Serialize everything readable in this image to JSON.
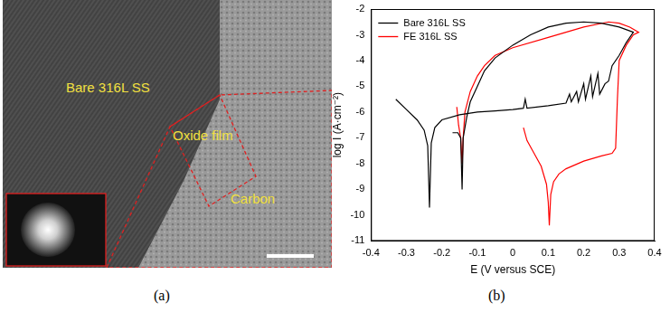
{
  "figure": {
    "panel_a": {
      "caption": "(a)",
      "labels": [
        "Bare 316L SS",
        "Oxide film",
        "Carbon"
      ]
    },
    "panel_b": {
      "caption": "(b)"
    }
  },
  "chart_data": {
    "type": "line",
    "xlabel": "E (V versus SCE)",
    "ylabel": "log I (A·cm⁻²)",
    "xlim": [
      -0.4,
      0.4
    ],
    "xticks": [
      -0.4,
      -0.3,
      -0.2,
      -0.1,
      0,
      0.1,
      0.2,
      0.3,
      0.4
    ],
    "ylim": [
      -11,
      -2
    ],
    "yticks": [
      -11,
      -10,
      -9,
      -8,
      -7,
      -6,
      -5,
      -4,
      -3,
      -2
    ],
    "grid": false,
    "legend": "upper left",
    "series": [
      {
        "name": "Bare 316L SS",
        "color": "#000000",
        "x": [
          -0.33,
          -0.3,
          -0.27,
          -0.25,
          -0.24,
          -0.235,
          -0.23,
          -0.22,
          -0.2,
          -0.15,
          -0.1,
          -0.05,
          0.0,
          0.03,
          0.035,
          0.04,
          0.1,
          0.15,
          0.16,
          0.165,
          0.18,
          0.185,
          0.2,
          0.205,
          0.22,
          0.225,
          0.24,
          0.245,
          0.26,
          0.27,
          0.28,
          0.3,
          0.32,
          0.34,
          0.3,
          0.25,
          0.2,
          0.15,
          0.1,
          0.05,
          0.0,
          -0.05,
          -0.08,
          -0.1,
          -0.12,
          -0.13,
          -0.14,
          -0.143,
          -0.147,
          -0.155,
          -0.17
        ],
        "values": [
          -5.5,
          -5.9,
          -6.3,
          -6.7,
          -7.3,
          -9.7,
          -7.2,
          -6.6,
          -6.3,
          -6.1,
          -6.0,
          -5.95,
          -5.9,
          -5.85,
          -5.5,
          -5.85,
          -5.75,
          -5.65,
          -5.3,
          -5.6,
          -5.2,
          -5.6,
          -4.9,
          -5.5,
          -4.6,
          -5.4,
          -4.5,
          -5.3,
          -4.9,
          -4.8,
          -4.2,
          -3.8,
          -3.3,
          -2.9,
          -2.7,
          -2.55,
          -2.5,
          -2.55,
          -2.7,
          -3.0,
          -3.4,
          -3.9,
          -4.4,
          -5.0,
          -5.6,
          -6.2,
          -7.0,
          -9.0,
          -7.0,
          -6.8,
          -6.8
        ]
      },
      {
        "name": "FE 316L SS",
        "color": "#ff0000",
        "x": [
          0.03,
          0.04,
          0.06,
          0.08,
          0.095,
          0.1,
          0.103,
          0.107,
          0.115,
          0.13,
          0.15,
          0.2,
          0.25,
          0.28,
          0.29,
          0.295,
          0.3,
          0.32,
          0.34,
          0.355,
          0.33,
          0.3,
          0.27,
          0.2,
          0.1,
          0.0,
          -0.05,
          -0.08,
          -0.1,
          -0.12,
          -0.135,
          -0.14,
          -0.143,
          -0.147,
          -0.153,
          -0.158
        ],
        "values": [
          -6.6,
          -7.1,
          -7.6,
          -8.1,
          -8.8,
          -9.5,
          -10.4,
          -9.2,
          -8.7,
          -8.4,
          -8.2,
          -7.9,
          -7.7,
          -7.6,
          -7.4,
          -5.5,
          -4.0,
          -3.4,
          -3.0,
          -2.9,
          -2.7,
          -2.55,
          -2.5,
          -2.7,
          -3.1,
          -3.5,
          -3.8,
          -4.2,
          -4.6,
          -5.2,
          -6.0,
          -7.0,
          -8.0,
          -7.0,
          -6.5,
          -5.8
        ]
      }
    ]
  }
}
